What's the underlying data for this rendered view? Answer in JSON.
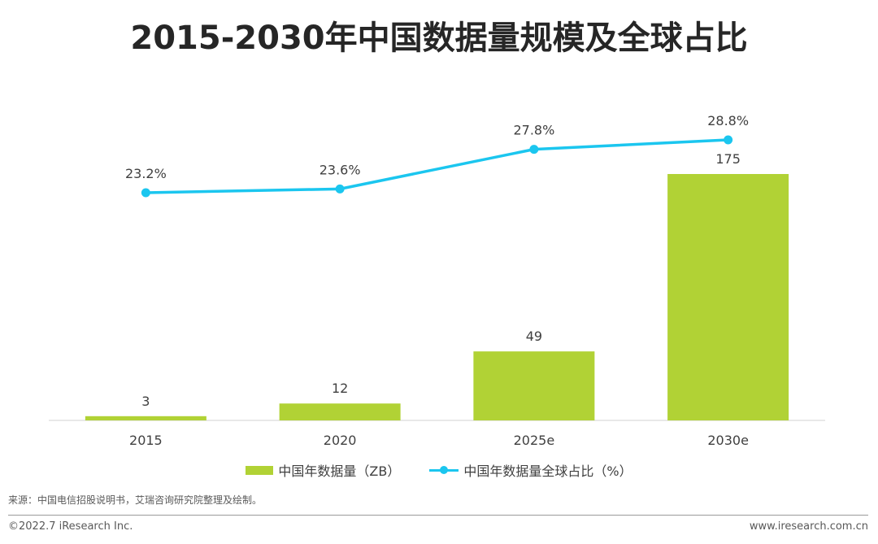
{
  "title": "2015-2030年中国数据量规模及全球占比",
  "chart_data": {
    "type": "bar+line",
    "categories": [
      "2015",
      "2020",
      "2025e",
      "2030e"
    ],
    "series": [
      {
        "name": "中国年数据量（ZB）",
        "type": "bar",
        "values": [
          3,
          12,
          49,
          175
        ],
        "labels": [
          "3",
          "12",
          "49",
          "175"
        ],
        "color": "#b1d235"
      },
      {
        "name": "中国年数据量全球占比（%）",
        "type": "line",
        "values": [
          23.2,
          23.6,
          27.8,
          28.8
        ],
        "labels": [
          "23.2%",
          "23.6%",
          "27.8%",
          "28.8%"
        ],
        "color": "#1bc6ef"
      }
    ],
    "legend_position": "bottom",
    "grid": false
  },
  "source": "来源：中国电信招股说明书，艾瑞咨询研究院整理及绘制。",
  "copyright": "©2022.7 iResearch Inc.",
  "website": "www.iresearch.com.cn",
  "colors": {
    "bar": "#b1d235",
    "line": "#1bc6ef",
    "text": "#404040",
    "axis": "#d0d0d0"
  }
}
